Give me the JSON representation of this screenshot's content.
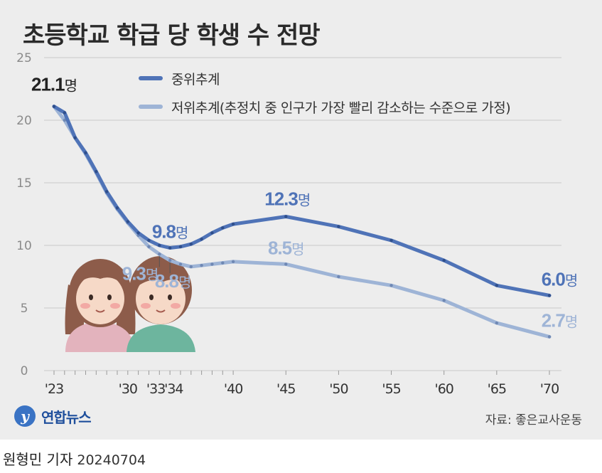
{
  "title": "초등학교 학급 당 학생 수 전망",
  "legend": {
    "items": [
      {
        "label": "중위추계",
        "color": "#4f73b7"
      },
      {
        "label": "저위추계(추정치 중 인구가 가장 빨리 감소하는 수준으로 가정)",
        "color": "#9eb4d6"
      }
    ]
  },
  "chart_data": {
    "type": "line",
    "title": "초등학교 학급 당 학생 수 전망",
    "unit": "명",
    "ylim": [
      0,
      25
    ],
    "yticks": [
      0,
      5,
      10,
      15,
      20,
      25
    ],
    "xlim": [
      2023,
      2070
    ],
    "xticks": [
      {
        "year": 2023,
        "label": "'23"
      },
      {
        "year": 2030,
        "label": "'30"
      },
      {
        "year": 2033,
        "label": "'33"
      },
      {
        "year": 2034,
        "label": "'34"
      },
      {
        "year": 2040,
        "label": "'40"
      },
      {
        "year": 2045,
        "label": "'45"
      },
      {
        "year": 2050,
        "label": "'50"
      },
      {
        "year": 2055,
        "label": "'55"
      },
      {
        "year": 2060,
        "label": "'60"
      },
      {
        "year": 2065,
        "label": "'65"
      },
      {
        "year": 2070,
        "label": "'70"
      }
    ],
    "grid": true,
    "series": [
      {
        "name": "중위추계",
        "color": "#4f73b7",
        "x": [
          2023,
          2024,
          2025,
          2026,
          2027,
          2028,
          2029,
          2030,
          2031,
          2032,
          2033,
          2034,
          2035,
          2036,
          2037,
          2038,
          2039,
          2040,
          2045,
          2050,
          2055,
          2060,
          2065,
          2070
        ],
        "y": [
          21.1,
          20.6,
          18.6,
          17.4,
          15.9,
          14.3,
          13.0,
          11.9,
          11.0,
          10.4,
          10.0,
          9.8,
          9.9,
          10.1,
          10.5,
          11.0,
          11.4,
          11.7,
          12.3,
          11.5,
          10.4,
          8.8,
          6.8,
          6.0
        ]
      },
      {
        "name": "저위추계(추정치 중 인구가 가장 빨리 감소하는 수준으로 가정)",
        "color": "#9eb4d6",
        "x": [
          2023,
          2024,
          2025,
          2026,
          2027,
          2028,
          2029,
          2030,
          2031,
          2032,
          2033,
          2034,
          2035,
          2036,
          2037,
          2038,
          2039,
          2040,
          2045,
          2050,
          2055,
          2060,
          2065,
          2070
        ],
        "y": [
          21.1,
          20.0,
          18.6,
          17.3,
          15.8,
          14.2,
          12.9,
          11.8,
          10.8,
          9.9,
          9.3,
          8.8,
          8.5,
          8.3,
          8.4,
          8.5,
          8.6,
          8.7,
          8.5,
          7.5,
          6.8,
          5.6,
          3.8,
          2.7
        ]
      }
    ],
    "annotations": [
      {
        "value": "21.1",
        "unit": "명",
        "series": 0,
        "x": 2023
      },
      {
        "value": "9.8",
        "unit": "명",
        "series": 0,
        "x": 2034
      },
      {
        "value": "12.3",
        "unit": "명",
        "series": 0,
        "x": 2045
      },
      {
        "value": "6.0",
        "unit": "명",
        "series": 0,
        "x": 2070
      },
      {
        "value": "9.3",
        "unit": "명",
        "series": 1,
        "x": 2033
      },
      {
        "value": "8.8",
        "unit": "명",
        "series": 1,
        "x": 2034
      },
      {
        "value": "8.5",
        "unit": "명",
        "series": 1,
        "x": 2045
      },
      {
        "value": "2.7",
        "unit": "명",
        "series": 1,
        "x": 2070
      }
    ]
  },
  "footer": {
    "logo_text": "연합뉴스",
    "logo_mark": "y",
    "source": "자료: 좋은교사운동",
    "byline_name": "원형민 기자",
    "byline_date": "20240704"
  },
  "colors": {
    "panel_bg": "#ededed",
    "grid": "#c9c9c9",
    "axis_text": "#8a8a8a",
    "dark_series_label": "#4f73b7",
    "light_series_label": "#9eb4d6"
  }
}
